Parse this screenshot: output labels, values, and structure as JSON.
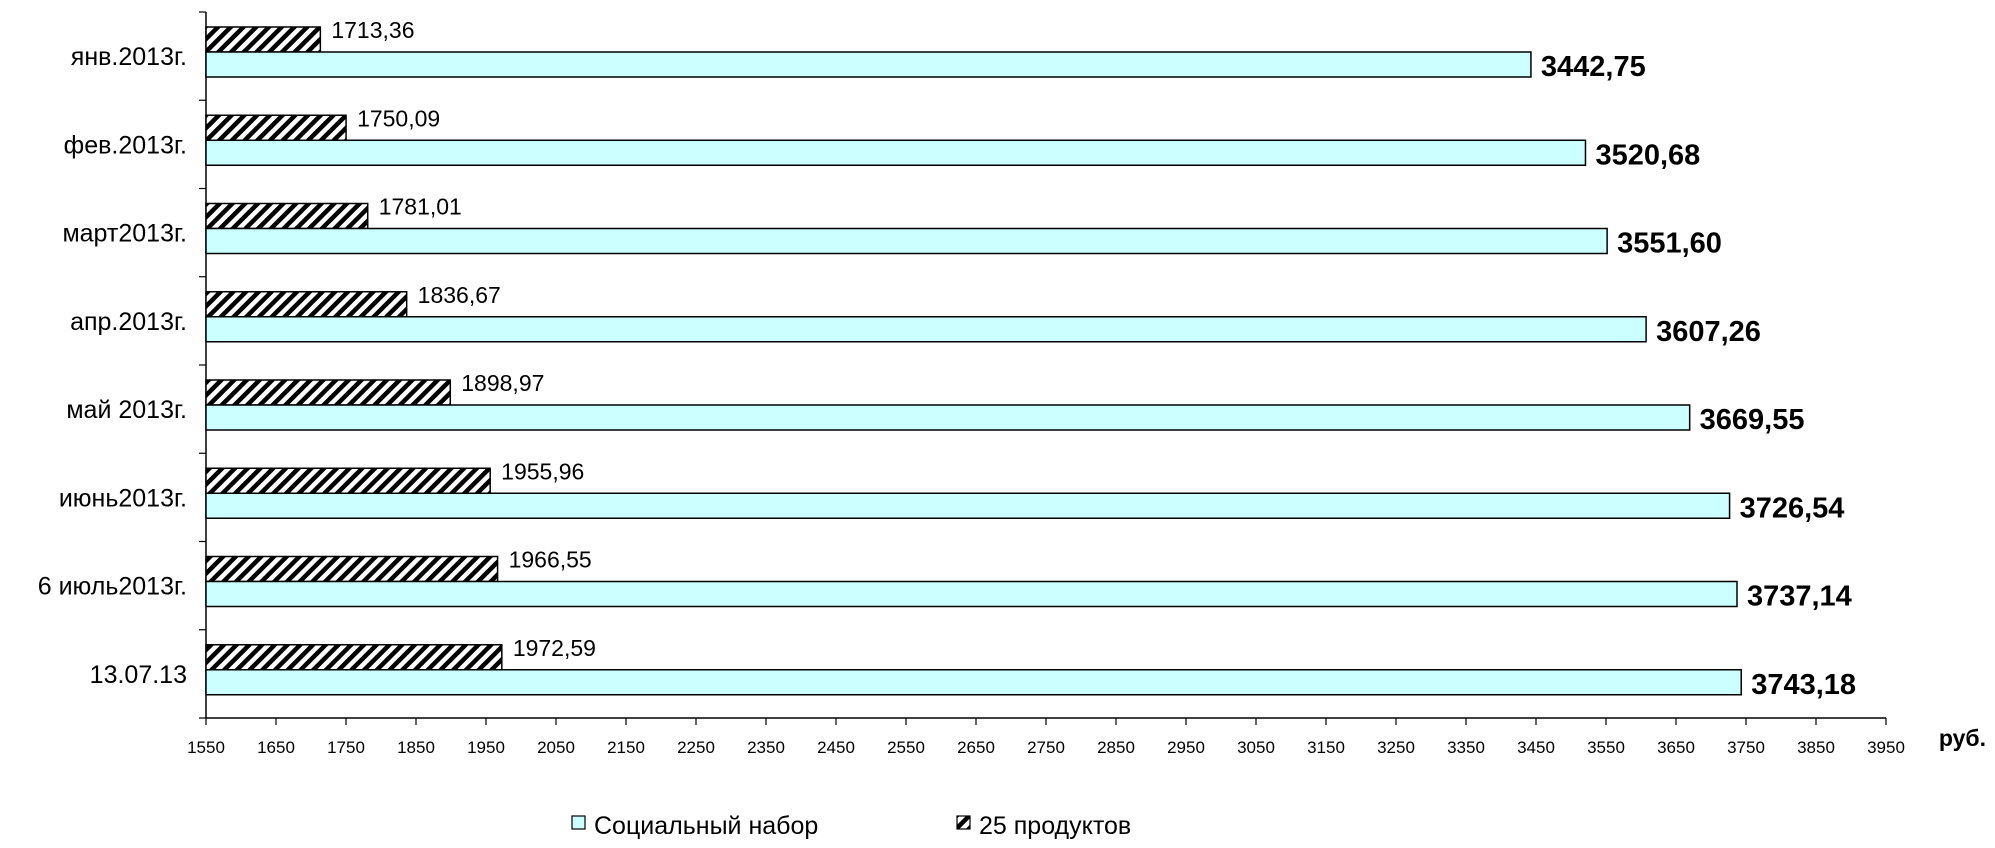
{
  "chart_data": {
    "type": "bar",
    "orientation": "horizontal",
    "categories": [
      "янв.2013г.",
      "фев.2013г.",
      "март2013г.",
      "апр.2013г.",
      "май 2013г.",
      "июнь2013г.",
      "6 июль2013г.",
      "13.07.13"
    ],
    "series": [
      {
        "name": "25 продуктов",
        "values": [
          1713.36,
          1750.09,
          1781.01,
          1836.67,
          1898.97,
          1955.96,
          1966.55,
          1972.59
        ],
        "labels": [
          "1713,36",
          "1750,09",
          "1781,01",
          "1836,67",
          "1898,97",
          "1955,96",
          "1966,55",
          "1972,59"
        ],
        "fill": "hatched",
        "color": "#000000"
      },
      {
        "name": "Социальный набор",
        "values": [
          3442.75,
          3520.68,
          3551.6,
          3607.26,
          3669.55,
          3726.54,
          3737.14,
          3743.18
        ],
        "labels": [
          "3442,75",
          "3520,68",
          "3551,60",
          "3607,26",
          "3669,55",
          "3726,54",
          "3737,14",
          "3743,18"
        ],
        "fill": "solid",
        "color": "#CCFFFF"
      }
    ],
    "x_ticks": [
      1550,
      1650,
      1750,
      1850,
      1950,
      2050,
      2150,
      2250,
      2350,
      2450,
      2550,
      2650,
      2750,
      2850,
      2950,
      3050,
      3150,
      3250,
      3350,
      3450,
      3550,
      3650,
      3750,
      3850,
      3950
    ],
    "xlim": [
      1550,
      3950
    ],
    "x_unit": "руб.",
    "grid": false,
    "legend": {
      "position": "bottom",
      "items": [
        "Социальный набор",
        "25 продуктов"
      ]
    }
  }
}
